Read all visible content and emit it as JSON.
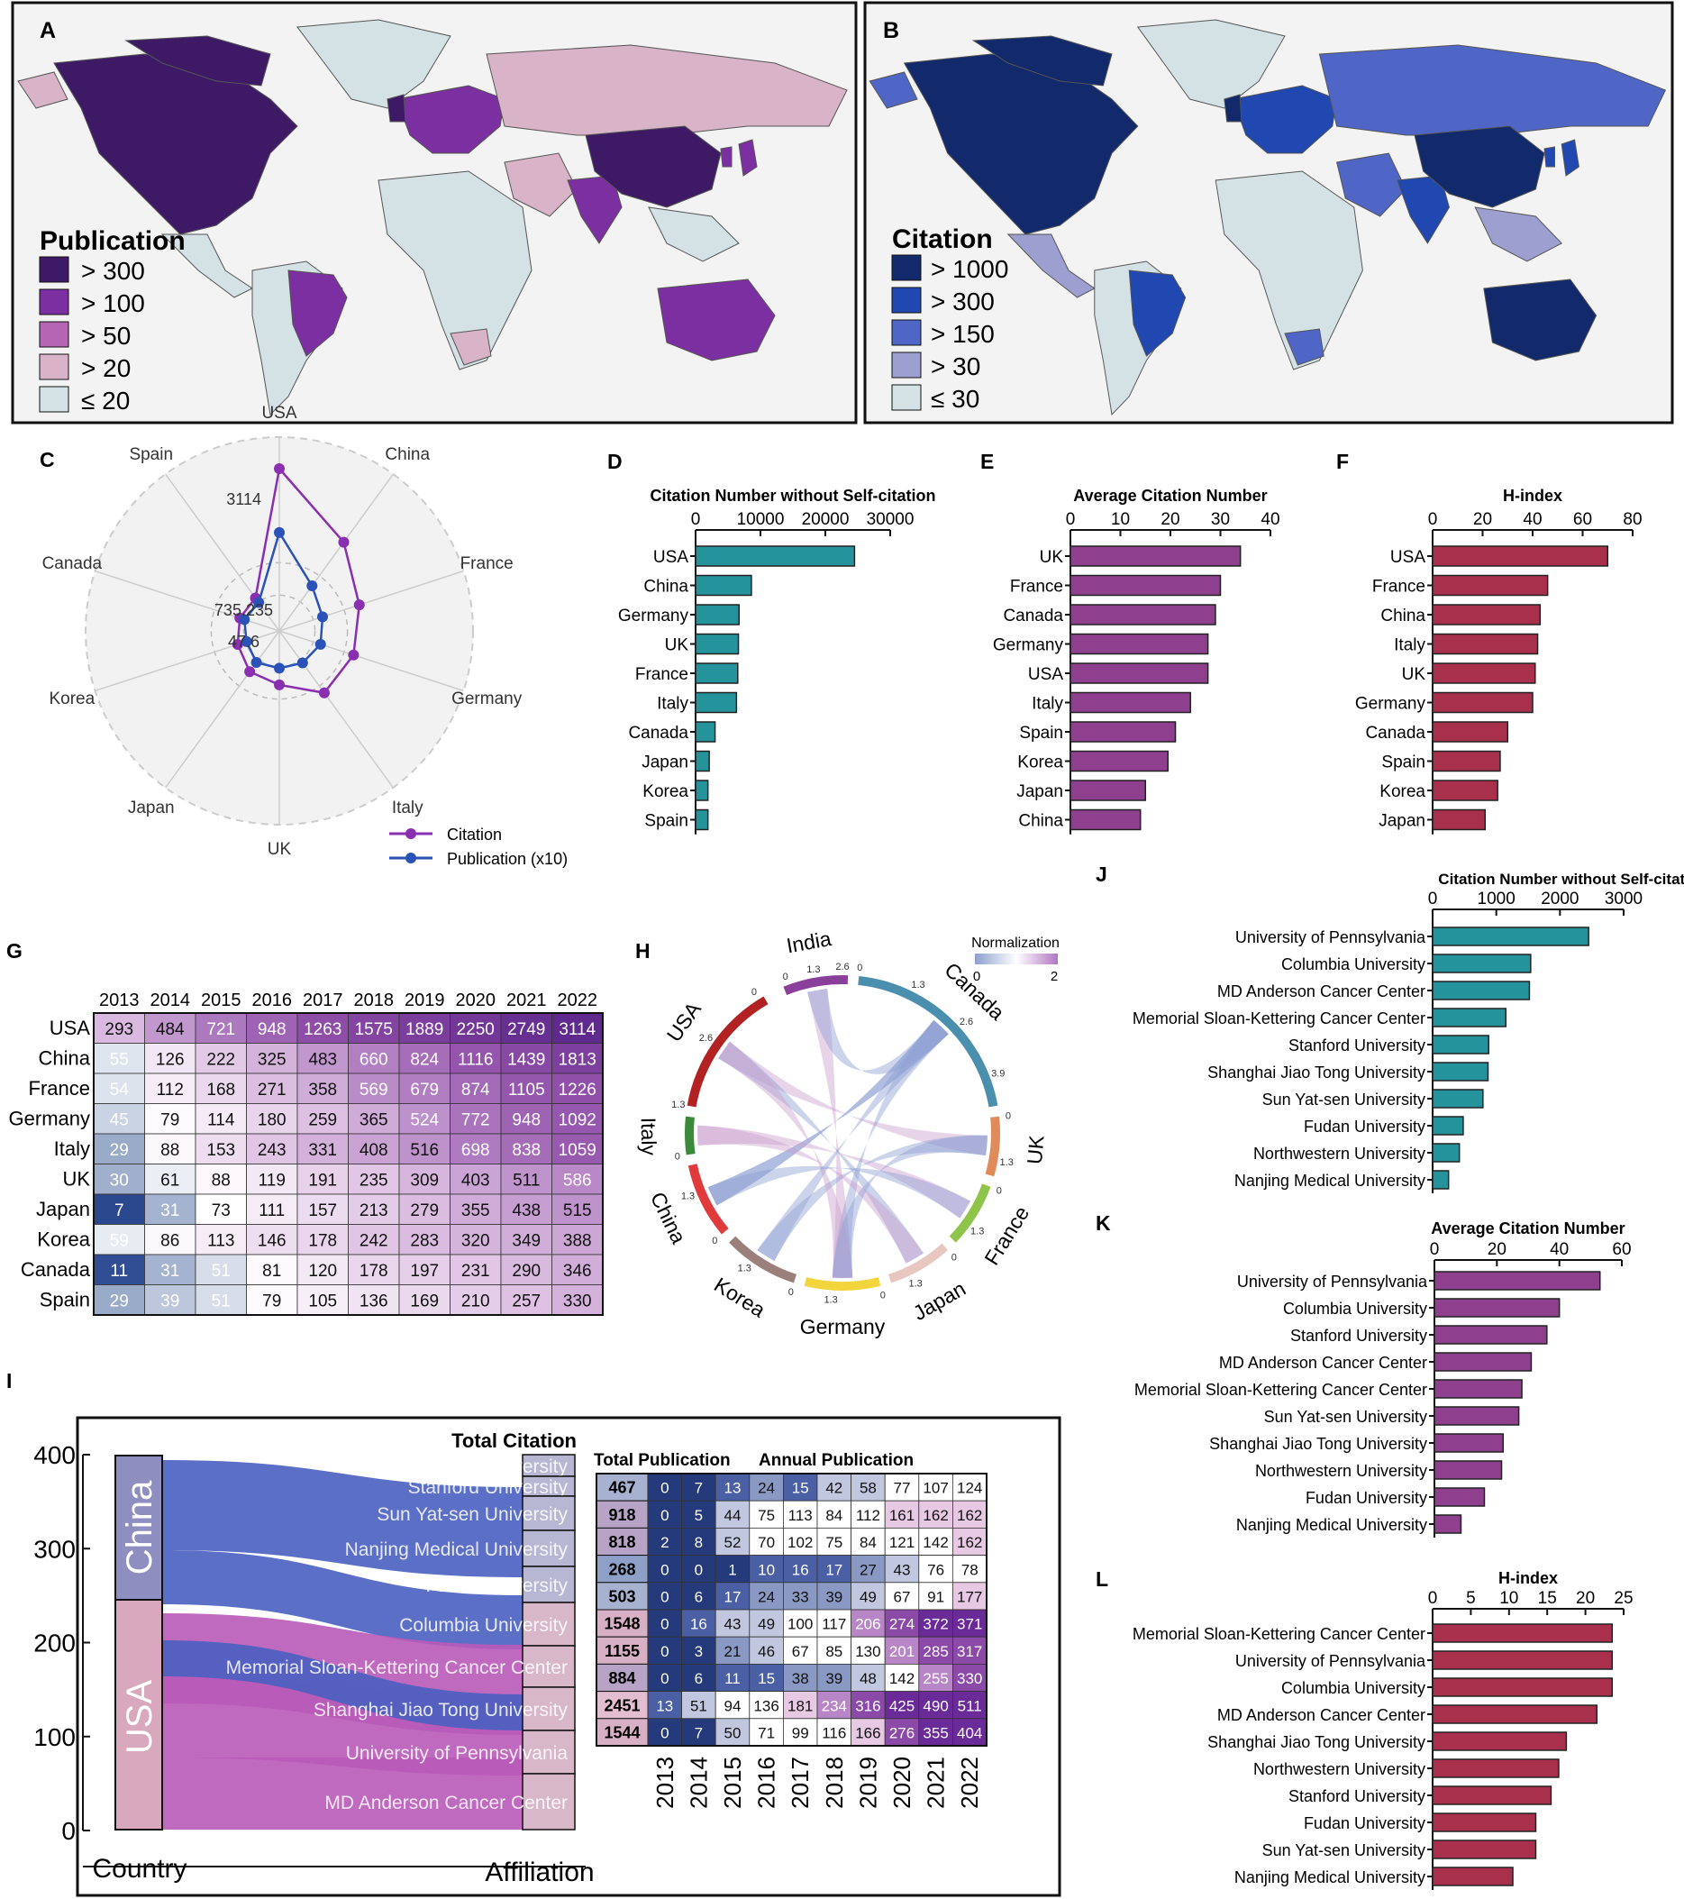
{
  "panel_labels": [
    "A",
    "B",
    "C",
    "D",
    "E",
    "F",
    "G",
    "H",
    "I",
    "J",
    "K",
    "L"
  ],
  "colors": {
    "pub_legend": [
      "#3e1a66",
      "#7b2fa0",
      "#b664b4",
      "#d9b3c7",
      "#d4e1e5"
    ],
    "cit_legend": [
      "#122a6b",
      "#2148b0",
      "#4f66c6",
      "#9c9fd0",
      "#d4e1e5"
    ],
    "teal": "#24939b",
    "purple": "#8e3f8d",
    "crimson": "#a8304c",
    "radar_citation": "#8a2fb0",
    "radar_pub": "#2a52b8"
  },
  "map_a": {
    "legend_title": "Publication",
    "legend": [
      "> 300",
      "> 100",
      "> 50",
      "> 20",
      "≤ 20"
    ]
  },
  "map_b": {
    "legend_title": "Citation",
    "legend": [
      "> 1000",
      "> 300",
      "> 150",
      "> 30",
      "≤ 30"
    ]
  },
  "chart_data": [
    {
      "id": "C",
      "type": "radar",
      "axes": [
        "USA",
        "China",
        "France",
        "Germany",
        "Italy",
        "UK",
        "Japan",
        "Korea",
        "Canada",
        "Spain"
      ],
      "tick_labels": [
        "3114",
        "735.235",
        "47.6"
      ],
      "series": [
        {
          "name": "Citation",
          "values": [
            3114,
            1813,
            1226,
            1092,
            1059,
            586,
            515,
            388,
            346,
            330
          ]
        },
        {
          "name": "Publication (x10)",
          "values": [
            1550,
            620,
            420,
            380,
            310,
            270,
            300,
            220,
            260,
            230
          ]
        }
      ]
    },
    {
      "id": "D",
      "type": "bar",
      "title": "Citation Number without Self-citation",
      "categories": [
        "USA",
        "China",
        "Germany",
        "UK",
        "France",
        "Italy",
        "Canada",
        "Japan",
        "Korea",
        "Spain"
      ],
      "values": [
        24500,
        8600,
        6700,
        6600,
        6500,
        6300,
        3000,
        2100,
        1900,
        1900
      ],
      "xlim": [
        0,
        30000
      ],
      "ticks": [
        "0",
        "10000",
        "20000",
        "30000"
      ]
    },
    {
      "id": "E",
      "type": "bar",
      "title": "Average Citation Number",
      "categories": [
        "UK",
        "France",
        "Canada",
        "Germany",
        "USA",
        "Italy",
        "Spain",
        "Korea",
        "Japan",
        "China"
      ],
      "values": [
        34,
        30,
        29,
        27.5,
        27.5,
        24,
        21,
        19.5,
        15,
        14
      ],
      "xlim": [
        0,
        40
      ],
      "ticks": [
        "0",
        "10",
        "20",
        "30",
        "40"
      ]
    },
    {
      "id": "F",
      "type": "bar",
      "title": "H-index",
      "categories": [
        "USA",
        "France",
        "China",
        "Italy",
        "UK",
        "Germany",
        "Canada",
        "Spain",
        "Korea",
        "Japan"
      ],
      "values": [
        70,
        46,
        43,
        42,
        41,
        40,
        30,
        27,
        26,
        21
      ],
      "xlim": [
        0,
        80
      ],
      "ticks": [
        "0",
        "20",
        "40",
        "60",
        "80"
      ]
    },
    {
      "id": "G",
      "type": "heatmap",
      "columns": [
        "2013",
        "2014",
        "2015",
        "2016",
        "2017",
        "2018",
        "2019",
        "2020",
        "2021",
        "2022"
      ],
      "rows": [
        "USA",
        "China",
        "France",
        "Germany",
        "Italy",
        "UK",
        "Japan",
        "Korea",
        "Canada",
        "Spain"
      ],
      "values": [
        [
          293,
          484,
          721,
          948,
          1263,
          1575,
          1889,
          2250,
          2749,
          3114
        ],
        [
          55,
          126,
          222,
          325,
          483,
          660,
          824,
          1116,
          1439,
          1813
        ],
        [
          54,
          112,
          168,
          271,
          358,
          569,
          679,
          874,
          1105,
          1226
        ],
        [
          45,
          79,
          114,
          180,
          259,
          365,
          524,
          772,
          948,
          1092
        ],
        [
          29,
          88,
          153,
          243,
          331,
          408,
          516,
          698,
          838,
          1059
        ],
        [
          30,
          61,
          88,
          119,
          191,
          235,
          309,
          403,
          511,
          586
        ],
        [
          7,
          31,
          73,
          111,
          157,
          213,
          279,
          355,
          438,
          515
        ],
        [
          59,
          86,
          113,
          146,
          178,
          242,
          283,
          320,
          349,
          388
        ],
        [
          11,
          31,
          51,
          81,
          120,
          178,
          197,
          231,
          290,
          346
        ],
        [
          29,
          39,
          51,
          79,
          105,
          136,
          169,
          210,
          257,
          330
        ]
      ]
    },
    {
      "id": "H",
      "type": "chord",
      "legend_title": "Normalization",
      "legend_ticks": [
        "0",
        "2"
      ],
      "nodes": [
        "India",
        "Canada",
        "UK",
        "France",
        "Japan",
        "Germany",
        "Korea",
        "China",
        "Italy",
        "USA"
      ],
      "tick_labels": [
        "0",
        "1.3",
        "2.6",
        "0",
        "1.3",
        "2.6",
        "3.9",
        "0",
        "1.3",
        "0",
        "1.3",
        "0",
        "1.3",
        "0",
        "1.3",
        "0",
        "1.3",
        "0",
        "1.3",
        "0",
        "1.3",
        "2.6",
        "0"
      ]
    },
    {
      "id": "I",
      "type": "table",
      "title_total_citation": "Total Citation",
      "title_total_publication": "Total Publication",
      "title_annual_publication": "Annual Publication",
      "country_axis_label": "Country",
      "affiliation_axis_label": "Affiliation",
      "y_ticks": [
        "400",
        "300",
        "200",
        "100",
        "0"
      ],
      "countries": [
        "China",
        "USA"
      ],
      "affiliations": [
        "Northwestern University",
        "Stanford University",
        "Sun Yat-sen University",
        "Nanjing Medical University",
        "Fudan University",
        "Columbia University",
        "Memorial Sloan-Kettering Cancer Center",
        "Shanghai Jiao Tong University",
        "University of Pennsylvania",
        "MD Anderson Cancer Center"
      ],
      "columns": [
        "2013",
        "2014",
        "2015",
        "2016",
        "2017",
        "2018",
        "2019",
        "2020",
        "2021",
        "2022"
      ],
      "total_citation": [
        467,
        918,
        818,
        268,
        503,
        1548,
        1155,
        884,
        2451,
        1544
      ],
      "annual": [
        [
          0,
          7,
          13,
          24,
          15,
          42,
          58,
          77,
          107,
          124
        ],
        [
          0,
          5,
          44,
          75,
          113,
          84,
          112,
          161,
          162,
          162
        ],
        [
          2,
          8,
          52,
          70,
          102,
          75,
          84,
          121,
          142,
          162
        ],
        [
          0,
          0,
          1,
          10,
          16,
          17,
          27,
          43,
          76,
          78
        ],
        [
          0,
          6,
          17,
          24,
          33,
          39,
          49,
          67,
          91,
          177
        ],
        [
          0,
          16,
          43,
          49,
          100,
          117,
          206,
          274,
          372,
          371
        ],
        [
          0,
          3,
          21,
          46,
          67,
          85,
          130,
          201,
          285,
          317
        ],
        [
          0,
          6,
          11,
          15,
          38,
          39,
          48,
          142,
          255,
          330
        ],
        [
          13,
          51,
          94,
          136,
          181,
          234,
          316,
          425,
          490,
          511
        ],
        [
          0,
          7,
          50,
          71,
          99,
          116,
          166,
          276,
          355,
          404
        ]
      ]
    },
    {
      "id": "J",
      "type": "bar",
      "title": "Citation Number without Self-citation",
      "categories": [
        "University of Pennsylvania",
        "Columbia University",
        "MD Anderson Cancer Center",
        "Memorial Sloan-Kettering Cancer Center",
        "Stanford University",
        "Shanghai Jiao Tong University",
        "Sun Yat-sen University",
        "Fudan University",
        "Northwestern University",
        "Nanjing Medical University"
      ],
      "values": [
        2450,
        1540,
        1520,
        1150,
        880,
        870,
        790,
        480,
        420,
        250
      ],
      "xlim": [
        0,
        3000
      ],
      "ticks": [
        "0",
        "1000",
        "2000",
        "3000"
      ]
    },
    {
      "id": "K",
      "type": "bar",
      "title": "Average Citation Number",
      "categories": [
        "University of Pennsylvania",
        "Columbia University",
        "Stanford University",
        "MD Anderson Cancer Center",
        "Memorial Sloan-Kettering Cancer Center",
        "Sun Yat-sen University",
        "Shanghai Jiao Tong University",
        "Northwestern University",
        "Fudan University",
        "Nanjing Medical University"
      ],
      "values": [
        53,
        40,
        36,
        31,
        28,
        27,
        22,
        21.5,
        16,
        8.5
      ],
      "xlim": [
        0,
        60
      ],
      "ticks": [
        "0",
        "20",
        "40",
        "60"
      ]
    },
    {
      "id": "L",
      "type": "bar",
      "title": "H-index",
      "categories": [
        "Memorial Sloan-Kettering Cancer Center",
        "University of Pennsylvania",
        "Columbia University",
        "MD Anderson Cancer Center",
        "Shanghai Jiao Tong University",
        "Northwestern University",
        "Stanford University",
        "Fudan University",
        "Sun Yat-sen University",
        "Nanjing Medical University"
      ],
      "values": [
        23.5,
        23.5,
        23.5,
        21.5,
        17.5,
        16.5,
        15.5,
        13.5,
        13.5,
        10.5
      ],
      "xlim": [
        0,
        25
      ],
      "ticks": [
        "0",
        "5",
        "10",
        "15",
        "20",
        "25"
      ]
    }
  ]
}
